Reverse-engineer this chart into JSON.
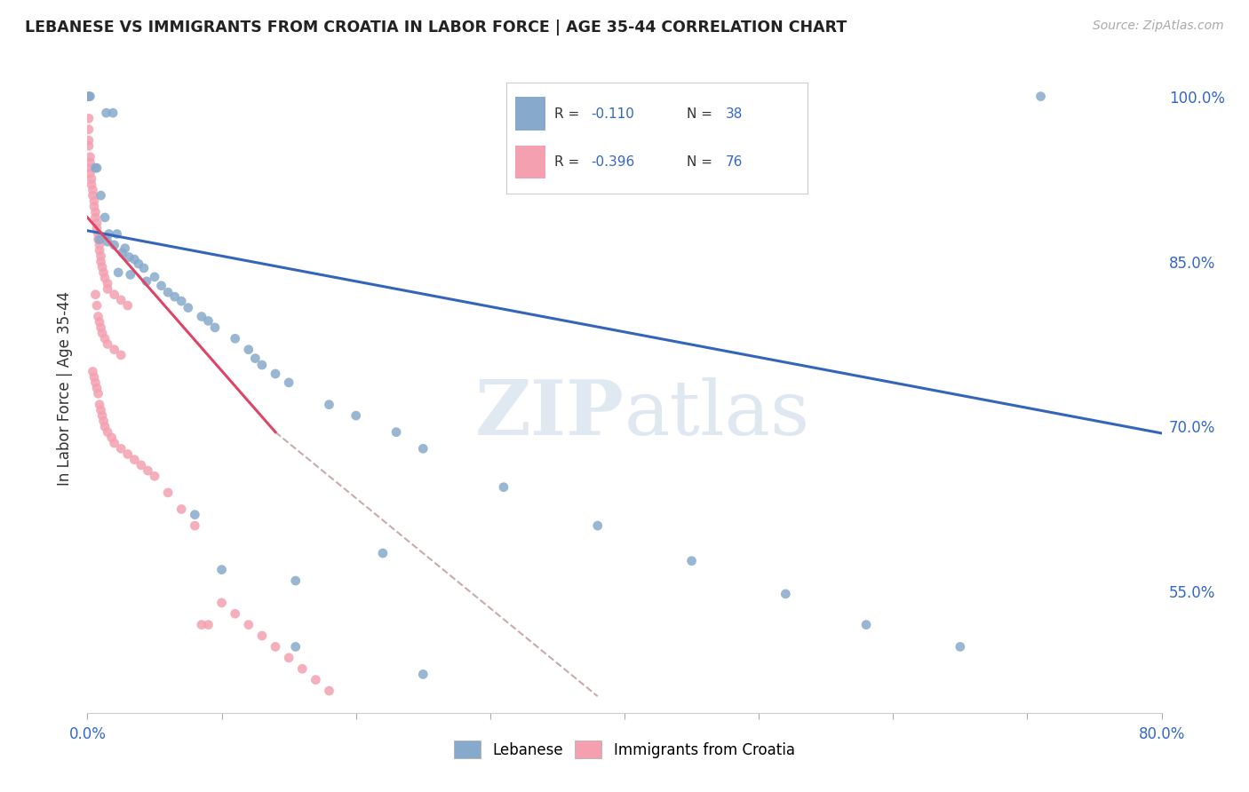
{
  "title": "LEBANESE VS IMMIGRANTS FROM CROATIA IN LABOR FORCE | AGE 35-44 CORRELATION CHART",
  "source": "Source: ZipAtlas.com",
  "ylabel": "In Labor Force | Age 35-44",
  "x_min": 0.0,
  "x_max": 0.8,
  "y_min": 0.44,
  "y_max": 1.03,
  "y_ticks": [
    0.55,
    0.7,
    0.85,
    1.0
  ],
  "y_tick_labels": [
    "55.0%",
    "70.0%",
    "85.0%",
    "100.0%"
  ],
  "watermark": "ZIPatlas",
  "blue_color": "#87AACC",
  "pink_color": "#F4A0B0",
  "line_blue": "#3366BB",
  "line_pink": "#DD4466",
  "line_gray": "#CCAAAA",
  "blue_scatter": [
    [
      0.001,
      1.0
    ],
    [
      0.002,
      1.0
    ],
    [
      0.014,
      0.985
    ],
    [
      0.019,
      0.985
    ],
    [
      0.006,
      0.935
    ],
    [
      0.007,
      0.935
    ],
    [
      0.01,
      0.91
    ],
    [
      0.013,
      0.89
    ],
    [
      0.016,
      0.875
    ],
    [
      0.022,
      0.875
    ],
    [
      0.009,
      0.87
    ],
    [
      0.015,
      0.868
    ],
    [
      0.02,
      0.865
    ],
    [
      0.028,
      0.862
    ],
    [
      0.026,
      0.858
    ],
    [
      0.031,
      0.854
    ],
    [
      0.035,
      0.852
    ],
    [
      0.038,
      0.848
    ],
    [
      0.042,
      0.844
    ],
    [
      0.023,
      0.84
    ],
    [
      0.032,
      0.838
    ],
    [
      0.05,
      0.836
    ],
    [
      0.044,
      0.832
    ],
    [
      0.055,
      0.828
    ],
    [
      0.06,
      0.822
    ],
    [
      0.065,
      0.818
    ],
    [
      0.07,
      0.814
    ],
    [
      0.075,
      0.808
    ],
    [
      0.085,
      0.8
    ],
    [
      0.09,
      0.796
    ],
    [
      0.095,
      0.79
    ],
    [
      0.11,
      0.78
    ],
    [
      0.12,
      0.77
    ],
    [
      0.125,
      0.762
    ],
    [
      0.13,
      0.756
    ],
    [
      0.14,
      0.748
    ],
    [
      0.15,
      0.74
    ],
    [
      0.18,
      0.72
    ],
    [
      0.2,
      0.71
    ],
    [
      0.23,
      0.695
    ],
    [
      0.25,
      0.68
    ],
    [
      0.31,
      0.645
    ],
    [
      0.38,
      0.61
    ],
    [
      0.45,
      0.578
    ],
    [
      0.52,
      0.548
    ],
    [
      0.58,
      0.52
    ],
    [
      0.65,
      0.5
    ],
    [
      0.71,
      1.0
    ],
    [
      0.08,
      0.62
    ],
    [
      0.1,
      0.57
    ],
    [
      0.155,
      0.56
    ],
    [
      0.22,
      0.585
    ],
    [
      0.25,
      0.475
    ],
    [
      0.155,
      0.5
    ]
  ],
  "pink_scatter": [
    [
      0.001,
      1.0
    ],
    [
      0.001,
      1.0
    ],
    [
      0.001,
      1.0
    ],
    [
      0.001,
      0.98
    ],
    [
      0.001,
      0.97
    ],
    [
      0.001,
      0.96
    ],
    [
      0.001,
      0.955
    ],
    [
      0.002,
      0.945
    ],
    [
      0.002,
      0.94
    ],
    [
      0.002,
      0.935
    ],
    [
      0.002,
      0.93
    ],
    [
      0.003,
      0.925
    ],
    [
      0.003,
      0.92
    ],
    [
      0.004,
      0.915
    ],
    [
      0.004,
      0.91
    ],
    [
      0.005,
      0.905
    ],
    [
      0.005,
      0.9
    ],
    [
      0.006,
      0.895
    ],
    [
      0.006,
      0.89
    ],
    [
      0.007,
      0.885
    ],
    [
      0.007,
      0.88
    ],
    [
      0.008,
      0.875
    ],
    [
      0.008,
      0.87
    ],
    [
      0.009,
      0.865
    ],
    [
      0.009,
      0.86
    ],
    [
      0.01,
      0.855
    ],
    [
      0.01,
      0.85
    ],
    [
      0.011,
      0.845
    ],
    [
      0.012,
      0.84
    ],
    [
      0.013,
      0.835
    ],
    [
      0.015,
      0.83
    ],
    [
      0.015,
      0.825
    ],
    [
      0.02,
      0.82
    ],
    [
      0.025,
      0.815
    ],
    [
      0.03,
      0.81
    ],
    [
      0.006,
      0.82
    ],
    [
      0.007,
      0.81
    ],
    [
      0.008,
      0.8
    ],
    [
      0.009,
      0.795
    ],
    [
      0.01,
      0.79
    ],
    [
      0.011,
      0.785
    ],
    [
      0.013,
      0.78
    ],
    [
      0.015,
      0.775
    ],
    [
      0.02,
      0.77
    ],
    [
      0.025,
      0.765
    ],
    [
      0.004,
      0.75
    ],
    [
      0.005,
      0.745
    ],
    [
      0.006,
      0.74
    ],
    [
      0.007,
      0.735
    ],
    [
      0.008,
      0.73
    ],
    [
      0.009,
      0.72
    ],
    [
      0.01,
      0.715
    ],
    [
      0.011,
      0.71
    ],
    [
      0.012,
      0.705
    ],
    [
      0.013,
      0.7
    ],
    [
      0.015,
      0.695
    ],
    [
      0.018,
      0.69
    ],
    [
      0.02,
      0.685
    ],
    [
      0.025,
      0.68
    ],
    [
      0.03,
      0.675
    ],
    [
      0.035,
      0.67
    ],
    [
      0.04,
      0.665
    ],
    [
      0.045,
      0.66
    ],
    [
      0.05,
      0.655
    ],
    [
      0.06,
      0.64
    ],
    [
      0.07,
      0.625
    ],
    [
      0.08,
      0.61
    ],
    [
      0.085,
      0.52
    ],
    [
      0.1,
      0.54
    ],
    [
      0.11,
      0.53
    ],
    [
      0.12,
      0.52
    ],
    [
      0.13,
      0.51
    ],
    [
      0.14,
      0.5
    ],
    [
      0.15,
      0.49
    ],
    [
      0.16,
      0.48
    ],
    [
      0.17,
      0.47
    ],
    [
      0.18,
      0.46
    ],
    [
      0.09,
      0.52
    ]
  ],
  "blue_trend_x": [
    0.0,
    0.8
  ],
  "blue_trend_y": [
    0.878,
    0.694
  ],
  "pink_trend_x": [
    0.0,
    0.14
  ],
  "pink_trend_y": [
    0.89,
    0.695
  ],
  "gray_trend_x": [
    0.14,
    0.38
  ],
  "gray_trend_y": [
    0.695,
    0.455
  ]
}
